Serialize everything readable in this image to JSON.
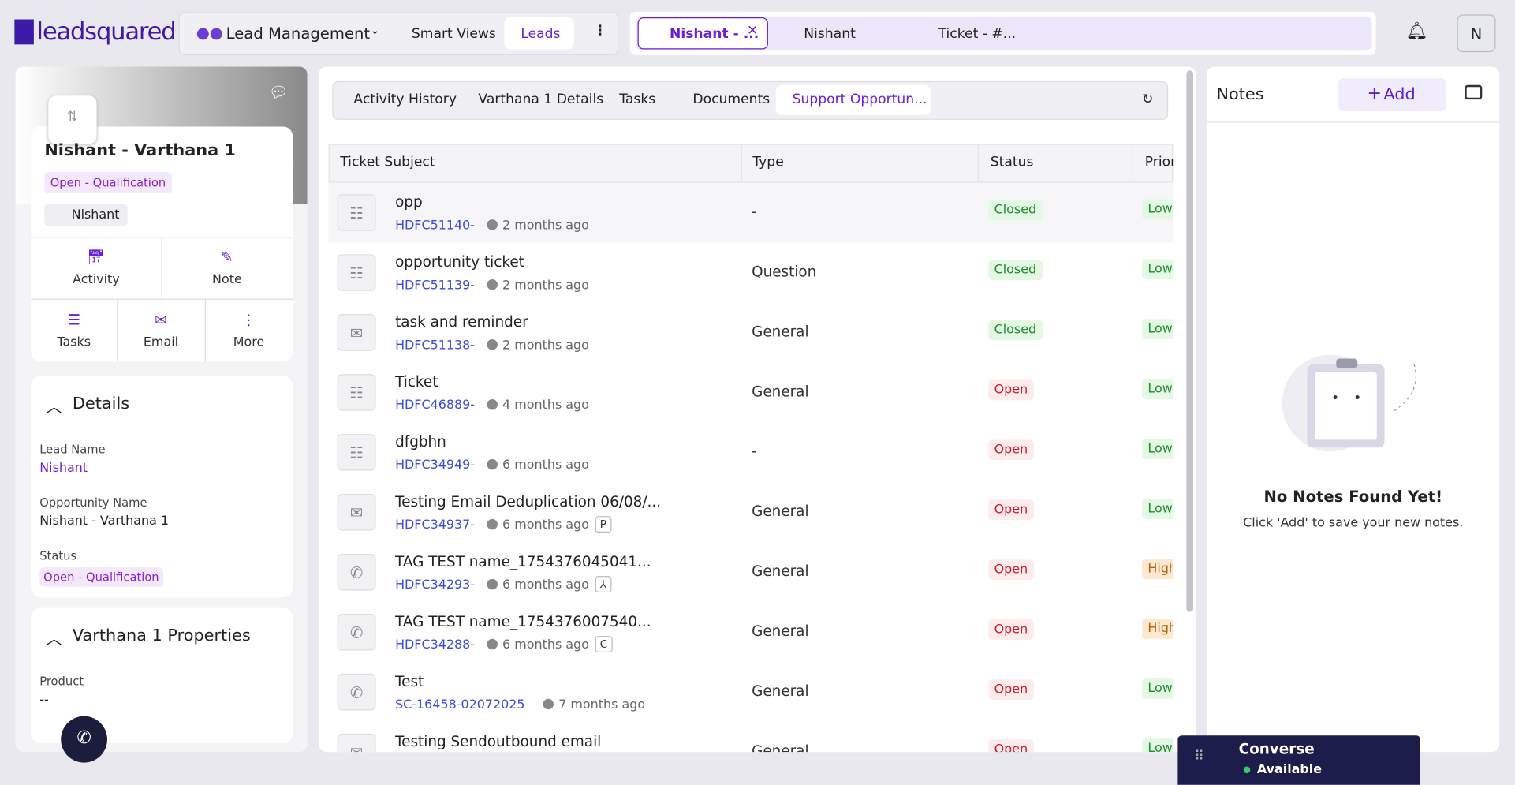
{
  "brand": "leadsquared",
  "nav": {
    "module": "Lead Management",
    "tabs": [
      "Smart Views",
      "Leads"
    ],
    "open_tabs": [
      "Nishant - ...",
      "Nishant",
      "Ticket - #..."
    ],
    "avatar": "N"
  },
  "profile": {
    "name": "Nishant - Varthana 1",
    "stage": "Open - Qualification",
    "owner": "Nishant",
    "actions": [
      "Activity",
      "Note",
      "Tasks",
      "Email",
      "More"
    ]
  },
  "details": {
    "title": "Details",
    "fields": [
      {
        "label": "Lead Name",
        "value": "Nishant"
      },
      {
        "label": "Opportunity Name",
        "value": "Nishant - Varthana 1"
      },
      {
        "label": "Status",
        "value": "Open - Qualification"
      }
    ]
  },
  "properties": {
    "title": "Varthana 1 Properties",
    "fields": [
      {
        "label": "Product",
        "value": "--"
      }
    ]
  },
  "tabs": [
    "Activity History",
    "Varthana 1 Details",
    "Tasks",
    "Documents",
    "Support Opportun..."
  ],
  "table": {
    "columns": [
      "Ticket Subject",
      "Type",
      "Status",
      "Priority"
    ],
    "rows": [
      {
        "icon": "form",
        "subject": "opp",
        "id": "HDFC51140-",
        "time": "2 months ago",
        "type": "-",
        "status": "Closed",
        "priority": "Low"
      },
      {
        "icon": "form",
        "subject": "opportunity ticket",
        "id": "HDFC51139-",
        "time": "2 months ago",
        "type": "Question",
        "status": "Closed",
        "priority": "Low"
      },
      {
        "icon": "email",
        "subject": "task and reminder",
        "id": "HDFC51138-",
        "time": "2 months ago",
        "type": "General",
        "status": "Closed",
        "priority": "Low"
      },
      {
        "icon": "form",
        "subject": "Ticket",
        "id": "HDFC46889-",
        "time": "4 months ago",
        "type": "General",
        "status": "Open",
        "priority": "Low"
      },
      {
        "icon": "form",
        "subject": "dfgbhn",
        "id": "HDFC34949-",
        "time": "6 months ago",
        "type": "-",
        "status": "Open",
        "priority": "Low"
      },
      {
        "icon": "email",
        "subject": "Testing Email Deduplication 06/08/...",
        "id": "HDFC34937-",
        "time": "6 months ago",
        "tag": "P",
        "type": "General",
        "status": "Open",
        "priority": "Low"
      },
      {
        "icon": "phone",
        "subject": "TAG TEST name_1754376045041...",
        "id": "HDFC34293-",
        "time": "6 months ago",
        "type": "General",
        "status": "Open",
        "priority": "High"
      },
      {
        "icon": "phone",
        "subject": "TAG TEST name_1754376007540...",
        "id": "HDFC34288-",
        "time": "6 months ago",
        "tag": "C",
        "type": "General",
        "status": "Open",
        "priority": "High"
      },
      {
        "icon": "phone",
        "subject": "Test",
        "id": "SC-16458-02072025",
        "time": "7 months ago",
        "type": "General",
        "status": "Open",
        "priority": "Low"
      },
      {
        "icon": "email",
        "subject": "Testing Sendoutbound email",
        "type": "General",
        "status": "Open",
        "priority": "Low"
      }
    ]
  },
  "notes": {
    "title": "Notes",
    "add": "Add",
    "empty_title": "No Notes Found Yet!",
    "empty_text": "Click 'Add' to save your new notes."
  },
  "converse": {
    "title": "Converse",
    "status": "Available"
  }
}
